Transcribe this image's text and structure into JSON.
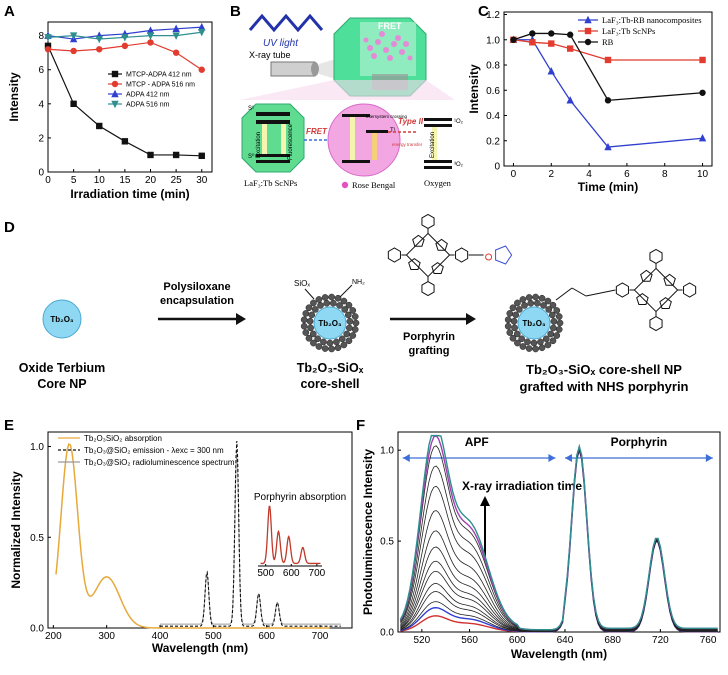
{
  "panels": {
    "A": "A",
    "B": "B",
    "C": "C",
    "D": "D",
    "E": "E",
    "F": "F"
  },
  "colors": {
    "black": "#111111",
    "red": "#e23b2f",
    "blue": "#2f3fcf",
    "teal": "#2f8f8f",
    "orange": "#e6a93a",
    "darkred": "#c0392b",
    "green": "#3fd98a",
    "pink": "#d86ac8"
  },
  "chart_data": [
    {
      "id": "A",
      "type": "line",
      "xlabel": "Irradiation time (min)",
      "ylabel": "Intensity",
      "xlim": [
        0,
        32
      ],
      "ylim": [
        0,
        8.8
      ],
      "xticks": [
        0,
        5,
        10,
        15,
        20,
        25,
        30
      ],
      "yticks": [
        0,
        2,
        4,
        6,
        8
      ],
      "series": [
        {
          "name": "MTCP-ADPA 412 nm",
          "x": [
            0,
            5,
            10,
            15,
            20,
            25,
            30
          ],
          "values": [
            7.4,
            4.0,
            2.7,
            1.8,
            1.0,
            1.0,
            0.95
          ]
        },
        {
          "name": "MTCP - ADPA 516 nm",
          "x": [
            0,
            5,
            10,
            15,
            20,
            25,
            30
          ],
          "values": [
            7.2,
            7.1,
            7.2,
            7.4,
            7.6,
            7.0,
            6.0
          ]
        },
        {
          "name": "ADPA 412 nm",
          "x": [
            0,
            5,
            10,
            15,
            20,
            25,
            30
          ],
          "values": [
            8.0,
            7.8,
            8.0,
            8.1,
            8.3,
            8.4,
            8.5
          ]
        },
        {
          "name": "ADPA 516 nm",
          "x": [
            0,
            5,
            10,
            15,
            20,
            25,
            30
          ],
          "values": [
            7.9,
            8.0,
            7.8,
            7.9,
            8.0,
            8.0,
            8.2
          ]
        }
      ]
    },
    {
      "id": "C",
      "type": "line",
      "xlabel": "Time (min)",
      "ylabel": "Intensity",
      "xlim": [
        -0.5,
        10.5
      ],
      "ylim": [
        0,
        1.22
      ],
      "xticks": [
        0,
        2,
        4,
        6,
        8,
        10
      ],
      "yticks": [
        0,
        0.2,
        0.4,
        0.6,
        0.8,
        1.0,
        1.2
      ],
      "ytickLabels": [
        "0",
        "0.2",
        "0.4",
        "0.6",
        "0.8",
        "1.0",
        "1.2"
      ],
      "series": [
        {
          "name": "LaF₃:Tb-RB nanocomposites",
          "x": [
            0,
            1,
            2,
            3,
            5,
            10
          ],
          "values": [
            1.0,
            1.0,
            0.75,
            0.52,
            0.15,
            0.22
          ]
        },
        {
          "name": "LaF₃:Tb ScNPs",
          "x": [
            0,
            1,
            2,
            3,
            5,
            10
          ],
          "values": [
            1.0,
            0.98,
            0.97,
            0.93,
            0.84,
            0.84
          ]
        },
        {
          "name": "RB",
          "x": [
            0,
            1,
            2,
            3,
            5,
            10
          ],
          "values": [
            1.0,
            1.05,
            1.05,
            1.04,
            0.52,
            0.58
          ]
        }
      ]
    },
    {
      "id": "E",
      "type": "line",
      "xlabel": "Wavelength (nm)",
      "ylabel": "Normalized Intensity",
      "xlim": [
        190,
        760
      ],
      "ylim": [
        0,
        1.08
      ],
      "xticks": [
        200,
        300,
        400,
        500,
        600,
        700
      ],
      "yticks": [
        0,
        0.5,
        1.0
      ],
      "ytickLabels": [
        "0.0",
        "0.5",
        "1.0"
      ],
      "legend": [
        "Tb₂O₃SiO₂ absorption",
        "Tb₂O₃@SiO₂ emission - λexc = 300 nm",
        "Tb₂O₃@SiO₂ radioluminescence spectrum"
      ],
      "peaks": [
        {
          "label": "absorption",
          "x": 230,
          "y": 1.0
        },
        {
          "label": "absorption",
          "x": 300,
          "y": 0.28
        },
        {
          "label": "emission",
          "x": 488,
          "y": 0.3
        },
        {
          "label": "emission",
          "x": 544,
          "y": 1.02
        },
        {
          "label": "emission",
          "x": 585,
          "y": 0.18
        },
        {
          "label": "emission",
          "x": 620,
          "y": 0.13
        }
      ],
      "inset": {
        "title": "Porphyrin absorption",
        "xticks": [
          500,
          600,
          700
        ],
        "peaks": [
          {
            "x": 515,
            "y": 0.9
          },
          {
            "x": 550,
            "y": 0.5
          },
          {
            "x": 590,
            "y": 0.42
          },
          {
            "x": 645,
            "y": 0.25
          }
        ]
      }
    },
    {
      "id": "F",
      "type": "line",
      "xlabel": "Wavelength (nm)",
      "ylabel": "Photoluminescence Intensity",
      "xlim": [
        500,
        770
      ],
      "ylim": [
        0,
        1.1
      ],
      "xticks": [
        520,
        560,
        600,
        640,
        680,
        720,
        760
      ],
      "yticks": [
        0,
        0.5,
        1.0
      ],
      "ytickLabels": [
        "0.0",
        "0.5",
        "1.0"
      ],
      "regions": [
        "APF",
        "Porphyrin"
      ],
      "annotation": "X-ray irradiation time",
      "apfPeakX": 530,
      "apfPeakValues": [
        0.08,
        0.12,
        0.15,
        0.2,
        0.24,
        0.3,
        0.35,
        0.42,
        0.5,
        0.6,
        0.72,
        0.82,
        0.92,
        0.97,
        1.02
      ],
      "porphyrinPeaks": [
        {
          "x": 652,
          "y": 1.0
        },
        {
          "x": 717,
          "y": 0.5
        }
      ]
    }
  ],
  "panelB": {
    "uv_label": "UV light",
    "xray_label": "X-ray tube",
    "fret_top": "FRET",
    "fret_mid": "FRET",
    "type2": "Type II",
    "type2_sub": "energy transfer",
    "excitation": "Excitation",
    "fluorescence": "Fluorescence",
    "isc": "intersystem crossing",
    "oxygen_excitation": "Excitation",
    "caption_left": "LaF₃:Tb ScNPs",
    "caption_mid": "Rose Bengal",
    "caption_right": "Oxygen",
    "s1": "S¹",
    "s0": "S⁰",
    "t1": "T¹",
    "o2_1": "¹O₂",
    "o2_3": "³O₂"
  },
  "panelD": {
    "np1": "Tb₂O₃",
    "label1a": "Oxide Terbium",
    "label1b": "Core NP",
    "arrow1a": "Polysiloxane",
    "arrow1b": "encapsulation",
    "np2": "Tb₂O₃",
    "siox": "SiOₓ",
    "nh2": "NH₂",
    "label2a": "Tb₂O₃-SiOₓ",
    "label2b": "core-shell",
    "arrow2a": "Porphyrin",
    "arrow2b": "grafting",
    "np3": "Tb₂O₃",
    "label3a": "Tb₂O₃-SiOₓ core-shell NP",
    "label3b": "grafted with NHS porphyrin"
  }
}
